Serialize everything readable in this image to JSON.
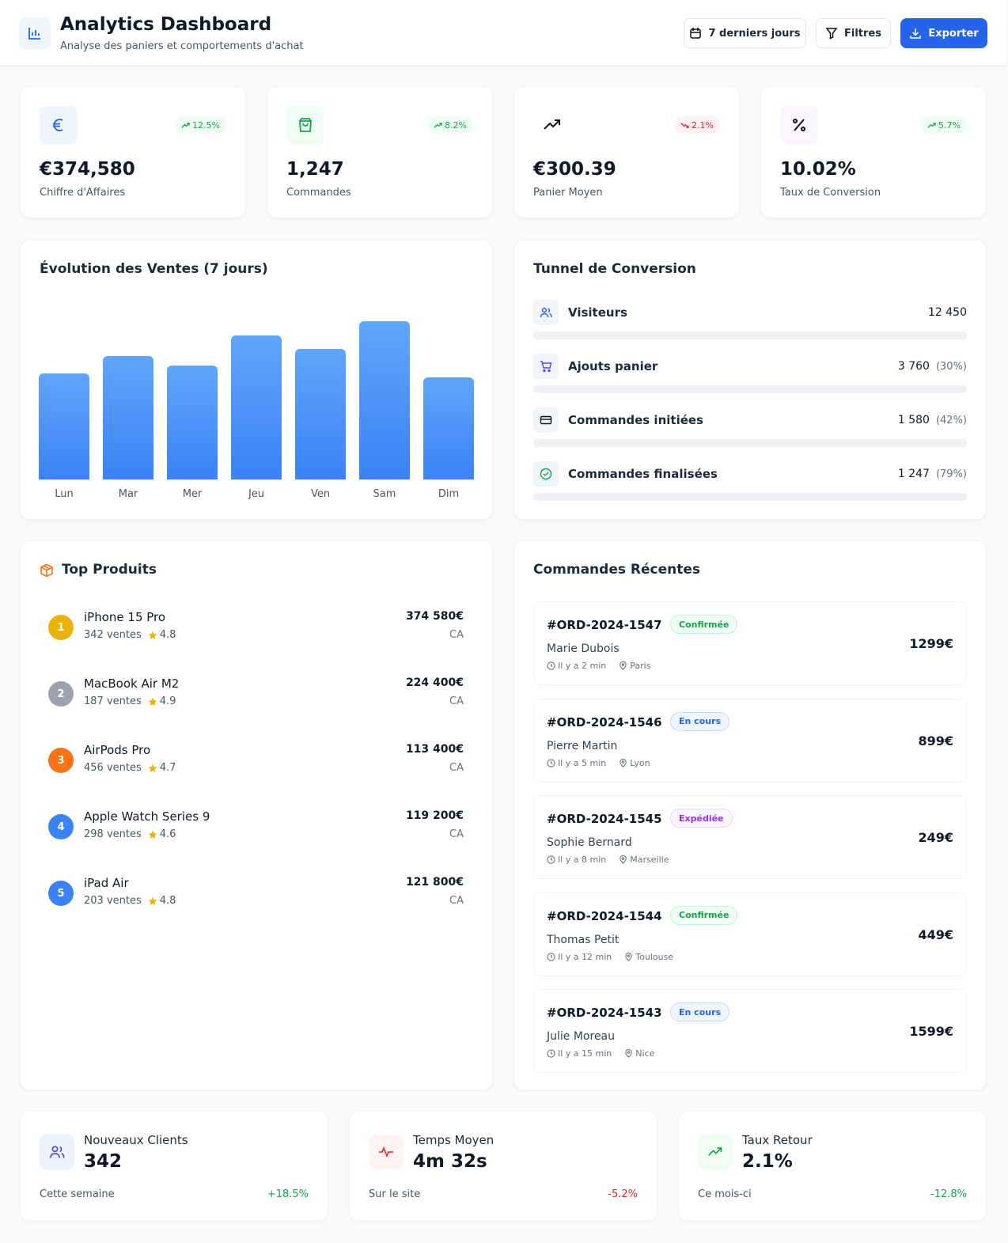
{
  "header": {
    "title": "Analytics Dashboard",
    "subtitle": "Analyse des paniers et comportements d'achat",
    "buttons": [
      "7 derniers jours",
      "Filtres",
      "Exporter"
    ]
  },
  "kpis": [
    {
      "change": "12.5%",
      "value": "€374,580",
      "label": "Chiffre d'Affaires"
    },
    {
      "change": "8.2%",
      "value": "1,247",
      "label": "Commandes"
    },
    {
      "change": "2.1%",
      "value": "€300.39",
      "label": "Panier Moyen"
    },
    {
      "change": "5.7%",
      "value": "10.02%",
      "label": "Taux de Conversion"
    }
  ],
  "sales_chart": {
    "type": "bar",
    "title": "Évolution des Ventes (7 jours)",
    "categories": [
      "Lun",
      "Mar",
      "Mer",
      "Jeu",
      "Ven",
      "Sam",
      "Dim"
    ],
    "values": [
      133,
      155,
      143,
      181,
      164,
      199,
      128
    ]
  },
  "funnel": {
    "title": "Tunnel de Conversion",
    "steps": [
      {
        "label": "Visiteurs",
        "value": "12 450"
      },
      {
        "label": "Ajouts panier",
        "value": "3 760",
        "rate": "(30%)"
      },
      {
        "label": "Commandes initiées",
        "value": "1 580",
        "rate": "(42%)"
      },
      {
        "label": "Commandes finalisées",
        "value": "1 247",
        "rate": "(79%)"
      }
    ]
  },
  "top_products": {
    "title": "Top Produits",
    "items": [
      {
        "rank": 1,
        "name": "iPhone 15 Pro",
        "sales": "342 ventes",
        "rating": 4.8,
        "revenue": "374 580€",
        "revenue_label": "CA"
      },
      {
        "rank": 2,
        "name": "MacBook Air M2",
        "sales": "187 ventes",
        "rating": 4.9,
        "revenue": "224 400€",
        "revenue_label": "CA"
      },
      {
        "rank": 3,
        "name": "AirPods Pro",
        "sales": "456 ventes",
        "rating": 4.7,
        "revenue": "113 400€",
        "revenue_label": "CA"
      },
      {
        "rank": 4,
        "name": "Apple Watch Series 9",
        "sales": "298 ventes",
        "rating": 4.6,
        "revenue": "119 200€",
        "revenue_label": "CA"
      },
      {
        "rank": 5,
        "name": "iPad Air",
        "sales": "203 ventes",
        "rating": 4.8,
        "revenue": "121 800€",
        "revenue_label": "CA"
      }
    ]
  },
  "recent_orders": {
    "title": "Commandes Récentes",
    "items": [
      {
        "id": "#ORD-2024-1547",
        "status": "Confirmée",
        "customer": "Marie Dubois",
        "time": "Il y a 2 min",
        "city": "Paris",
        "amount": "1299€"
      },
      {
        "id": "#ORD-2024-1546",
        "status": "En cours",
        "customer": "Pierre Martin",
        "time": "Il y a 5 min",
        "city": "Lyon",
        "amount": "899€"
      },
      {
        "id": "#ORD-2024-1545",
        "status": "Expédiée",
        "customer": "Sophie Bernard",
        "time": "Il y a 8 min",
        "city": "Marseille",
        "amount": "249€"
      },
      {
        "id": "#ORD-2024-1544",
        "status": "Confirmée",
        "customer": "Thomas Petit",
        "time": "Il y a 12 min",
        "city": "Toulouse",
        "amount": "449€"
      },
      {
        "id": "#ORD-2024-1543",
        "status": "En cours",
        "customer": "Julie Moreau",
        "time": "Il y a 15 min",
        "city": "Nice",
        "amount": "1599€"
      }
    ]
  },
  "summary": [
    {
      "title": "Nouveaux Clients",
      "value": "342",
      "caption": "Cette semaine",
      "change": "+18.5%"
    },
    {
      "title": "Temps Moyen",
      "value": "4m 32s",
      "caption": "Sur le site",
      "change": "-5.2%"
    },
    {
      "title": "Taux Retour",
      "value": "2.1%",
      "caption": "Ce mois-ci",
      "change": "-12.8%"
    }
  ]
}
